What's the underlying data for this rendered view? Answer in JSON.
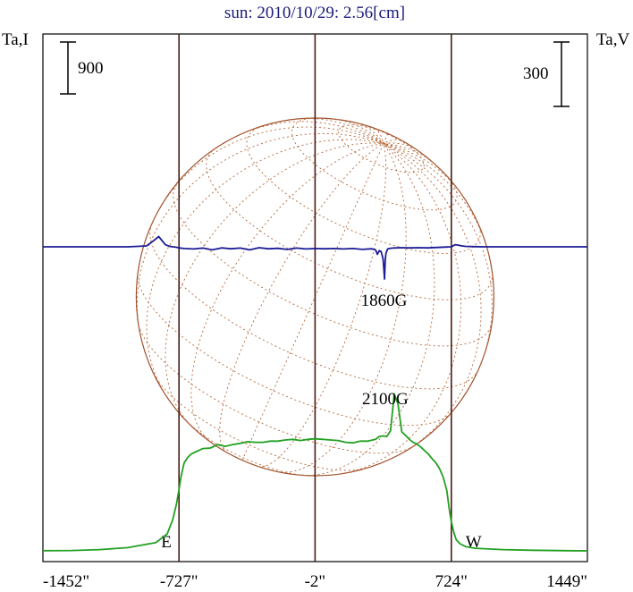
{
  "chart_data": {
    "type": "line",
    "title": "sun: 2010/10/29: 2.56[cm]",
    "ylabel_left": "Ta,I",
    "ylabel_right": "Ta,V",
    "scale_bar_left": "900",
    "scale_bar_right": "300",
    "xlim": [
      -1452,
      1449
    ],
    "x_ticks": [
      {
        "value": -1452,
        "label": "-1452\""
      },
      {
        "value": -727,
        "label": "-727\""
      },
      {
        "value": -2,
        "label": "-2\""
      },
      {
        "value": 724,
        "label": "724\""
      },
      {
        "value": 1449,
        "label": "1449\""
      }
    ],
    "limb_markers": [
      {
        "value": -727,
        "label": "E"
      },
      {
        "value": 724,
        "label": "W"
      }
    ],
    "grid": false,
    "annotations": [
      {
        "text": "1860G",
        "x": 365
      },
      {
        "text": "2100G",
        "x": 372
      }
    ],
    "series": [
      {
        "color": "#22a022",
        "x": [
          -1452,
          -1300,
          -1150,
          -1000,
          -850,
          -790,
          -760,
          -740,
          -727,
          -715,
          -700,
          -680,
          -660,
          -640,
          -620,
          -600,
          -560,
          -520,
          -480,
          -440,
          -400,
          -360,
          -320,
          -280,
          -240,
          -200,
          -160,
          -120,
          -80,
          -40,
          -2,
          40,
          80,
          120,
          160,
          200,
          240,
          280,
          320,
          340,
          360,
          380,
          400,
          420,
          440,
          460,
          480,
          500,
          520,
          540,
          560,
          580,
          600,
          620,
          640,
          660,
          680,
          700,
          712,
          724,
          738,
          750,
          770,
          800,
          850,
          1000,
          1150,
          1300,
          1449
        ],
        "y": [
          18,
          22,
          38,
          72,
          160,
          310,
          560,
          840,
          1080,
          1320,
          1540,
          1640,
          1700,
          1730,
          1760,
          1790,
          1800,
          1860,
          1830,
          1860,
          1880,
          1910,
          1900,
          1900,
          1920,
          1920,
          1940,
          1950,
          1930,
          1950,
          1960,
          1950,
          1940,
          1930,
          1900,
          1890,
          1920,
          1920,
          1950,
          2000,
          2010,
          2000,
          2100,
          2740,
          2560,
          2080,
          2020,
          1950,
          1900,
          1870,
          1820,
          1760,
          1700,
          1620,
          1550,
          1450,
          1300,
          1060,
          760,
          520,
          330,
          210,
          140,
          90,
          60,
          38,
          26,
          20,
          16
        ]
      },
      {
        "color": "#1c1c96",
        "x": [
          -1452,
          -1300,
          -1150,
          -1000,
          -900,
          -860,
          -835,
          -800,
          -780,
          -760,
          -740,
          -727,
          -700,
          -650,
          -600,
          -550,
          -500,
          -450,
          -400,
          -350,
          -300,
          -250,
          -200,
          -150,
          -100,
          -50,
          -2,
          50,
          100,
          150,
          200,
          250,
          300,
          320,
          330,
          340,
          350,
          360,
          364,
          368,
          372,
          376,
          380,
          385,
          395,
          410,
          430,
          460,
          500,
          550,
          600,
          650,
          700,
          724,
          745,
          760,
          780,
          800,
          850,
          900,
          1000,
          1100,
          1200,
          1300,
          1449
        ],
        "y": [
          0,
          0,
          0,
          0,
          4,
          30,
          48,
          10,
          3,
          0,
          -2,
          -5,
          -8,
          -10,
          -6,
          -14,
          -5,
          -9,
          -6,
          -14,
          -4,
          -9,
          -7,
          -12,
          -6,
          -10,
          -8,
          -9,
          -8,
          -10,
          -8,
          -12,
          -9,
          -14,
          -35,
          -18,
          -22,
          -55,
          -95,
          -150,
          -60,
          -30,
          -20,
          -10,
          -8,
          -6,
          -5,
          -4,
          -5,
          -4,
          -5,
          -3,
          -1,
          0,
          10,
          8,
          4,
          2,
          1,
          0,
          0,
          0,
          0,
          0,
          0
        ]
      }
    ]
  }
}
